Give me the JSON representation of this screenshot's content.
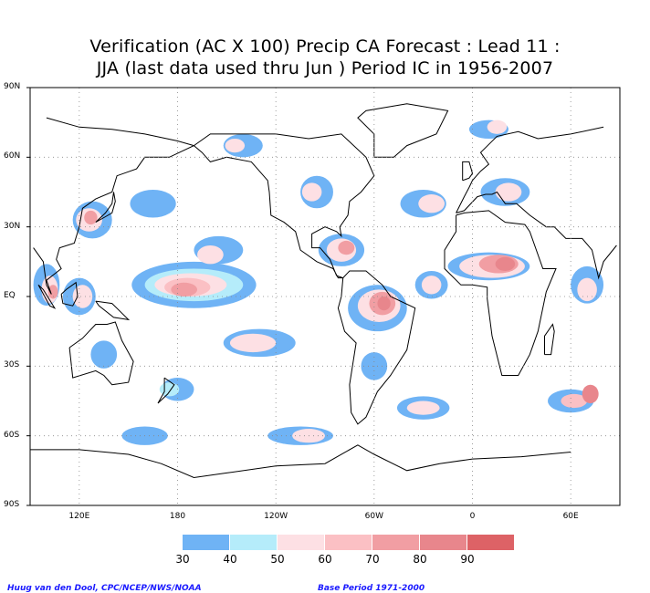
{
  "title": {
    "line1": "Verification (AC X 100) Precip CA Forecast : Lead 11 :",
    "line2": "JJA (last data used thru Jun ) Period IC in 1956-2007"
  },
  "lat_labels": [
    "90N",
    "60N",
    "30N",
    "EQ",
    "30S",
    "60S",
    "90S"
  ],
  "lon_labels": [
    "120E",
    "180",
    "120W",
    "60W",
    "0",
    "60E"
  ],
  "colorbar": {
    "labels": [
      "30",
      "40",
      "50",
      "60",
      "70",
      "80",
      "90"
    ],
    "colors": [
      "#6fb3f5",
      "#b5ecfa",
      "#fde0e4",
      "#fbc0c4",
      "#f19ea3",
      "#e8868c",
      "#dd6266"
    ]
  },
  "credit_left": "Huug van den Dool, CPC/NCEP/NWS/NOAA",
  "credit_right": "Base Period 1971-2000",
  "colors": {
    "land_outline": "#000000",
    "grid": "#888888"
  }
}
